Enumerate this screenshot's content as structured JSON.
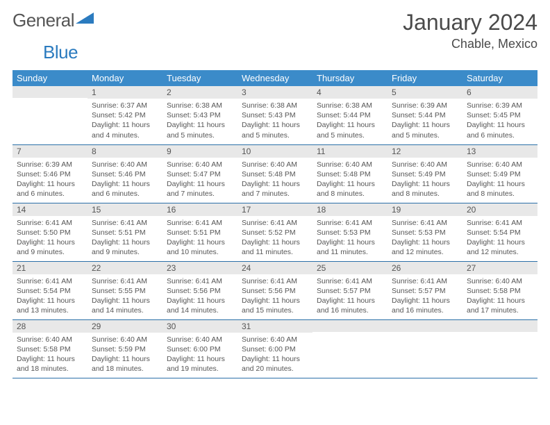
{
  "brand": {
    "name_a": "General",
    "name_b": "Blue"
  },
  "title": "January 2024",
  "location": "Chable, Mexico",
  "colors": {
    "header_bg": "#3b8bc9",
    "header_text": "#ffffff",
    "daynum_bg": "#e8e8e8",
    "text": "#555555",
    "row_border": "#2b6fa8",
    "logo_blue": "#2b7bbf"
  },
  "weekdays": [
    "Sunday",
    "Monday",
    "Tuesday",
    "Wednesday",
    "Thursday",
    "Friday",
    "Saturday"
  ],
  "weeks": [
    [
      {
        "n": "",
        "sr": "",
        "ss": "",
        "dl": ""
      },
      {
        "n": "1",
        "sr": "Sunrise: 6:37 AM",
        "ss": "Sunset: 5:42 PM",
        "dl": "Daylight: 11 hours and 4 minutes."
      },
      {
        "n": "2",
        "sr": "Sunrise: 6:38 AM",
        "ss": "Sunset: 5:43 PM",
        "dl": "Daylight: 11 hours and 5 minutes."
      },
      {
        "n": "3",
        "sr": "Sunrise: 6:38 AM",
        "ss": "Sunset: 5:43 PM",
        "dl": "Daylight: 11 hours and 5 minutes."
      },
      {
        "n": "4",
        "sr": "Sunrise: 6:38 AM",
        "ss": "Sunset: 5:44 PM",
        "dl": "Daylight: 11 hours and 5 minutes."
      },
      {
        "n": "5",
        "sr": "Sunrise: 6:39 AM",
        "ss": "Sunset: 5:44 PM",
        "dl": "Daylight: 11 hours and 5 minutes."
      },
      {
        "n": "6",
        "sr": "Sunrise: 6:39 AM",
        "ss": "Sunset: 5:45 PM",
        "dl": "Daylight: 11 hours and 6 minutes."
      }
    ],
    [
      {
        "n": "7",
        "sr": "Sunrise: 6:39 AM",
        "ss": "Sunset: 5:46 PM",
        "dl": "Daylight: 11 hours and 6 minutes."
      },
      {
        "n": "8",
        "sr": "Sunrise: 6:40 AM",
        "ss": "Sunset: 5:46 PM",
        "dl": "Daylight: 11 hours and 6 minutes."
      },
      {
        "n": "9",
        "sr": "Sunrise: 6:40 AM",
        "ss": "Sunset: 5:47 PM",
        "dl": "Daylight: 11 hours and 7 minutes."
      },
      {
        "n": "10",
        "sr": "Sunrise: 6:40 AM",
        "ss": "Sunset: 5:48 PM",
        "dl": "Daylight: 11 hours and 7 minutes."
      },
      {
        "n": "11",
        "sr": "Sunrise: 6:40 AM",
        "ss": "Sunset: 5:48 PM",
        "dl": "Daylight: 11 hours and 8 minutes."
      },
      {
        "n": "12",
        "sr": "Sunrise: 6:40 AM",
        "ss": "Sunset: 5:49 PM",
        "dl": "Daylight: 11 hours and 8 minutes."
      },
      {
        "n": "13",
        "sr": "Sunrise: 6:40 AM",
        "ss": "Sunset: 5:49 PM",
        "dl": "Daylight: 11 hours and 8 minutes."
      }
    ],
    [
      {
        "n": "14",
        "sr": "Sunrise: 6:41 AM",
        "ss": "Sunset: 5:50 PM",
        "dl": "Daylight: 11 hours and 9 minutes."
      },
      {
        "n": "15",
        "sr": "Sunrise: 6:41 AM",
        "ss": "Sunset: 5:51 PM",
        "dl": "Daylight: 11 hours and 9 minutes."
      },
      {
        "n": "16",
        "sr": "Sunrise: 6:41 AM",
        "ss": "Sunset: 5:51 PM",
        "dl": "Daylight: 11 hours and 10 minutes."
      },
      {
        "n": "17",
        "sr": "Sunrise: 6:41 AM",
        "ss": "Sunset: 5:52 PM",
        "dl": "Daylight: 11 hours and 11 minutes."
      },
      {
        "n": "18",
        "sr": "Sunrise: 6:41 AM",
        "ss": "Sunset: 5:53 PM",
        "dl": "Daylight: 11 hours and 11 minutes."
      },
      {
        "n": "19",
        "sr": "Sunrise: 6:41 AM",
        "ss": "Sunset: 5:53 PM",
        "dl": "Daylight: 11 hours and 12 minutes."
      },
      {
        "n": "20",
        "sr": "Sunrise: 6:41 AM",
        "ss": "Sunset: 5:54 PM",
        "dl": "Daylight: 11 hours and 12 minutes."
      }
    ],
    [
      {
        "n": "21",
        "sr": "Sunrise: 6:41 AM",
        "ss": "Sunset: 5:54 PM",
        "dl": "Daylight: 11 hours and 13 minutes."
      },
      {
        "n": "22",
        "sr": "Sunrise: 6:41 AM",
        "ss": "Sunset: 5:55 PM",
        "dl": "Daylight: 11 hours and 14 minutes."
      },
      {
        "n": "23",
        "sr": "Sunrise: 6:41 AM",
        "ss": "Sunset: 5:56 PM",
        "dl": "Daylight: 11 hours and 14 minutes."
      },
      {
        "n": "24",
        "sr": "Sunrise: 6:41 AM",
        "ss": "Sunset: 5:56 PM",
        "dl": "Daylight: 11 hours and 15 minutes."
      },
      {
        "n": "25",
        "sr": "Sunrise: 6:41 AM",
        "ss": "Sunset: 5:57 PM",
        "dl": "Daylight: 11 hours and 16 minutes."
      },
      {
        "n": "26",
        "sr": "Sunrise: 6:41 AM",
        "ss": "Sunset: 5:57 PM",
        "dl": "Daylight: 11 hours and 16 minutes."
      },
      {
        "n": "27",
        "sr": "Sunrise: 6:40 AM",
        "ss": "Sunset: 5:58 PM",
        "dl": "Daylight: 11 hours and 17 minutes."
      }
    ],
    [
      {
        "n": "28",
        "sr": "Sunrise: 6:40 AM",
        "ss": "Sunset: 5:58 PM",
        "dl": "Daylight: 11 hours and 18 minutes."
      },
      {
        "n": "29",
        "sr": "Sunrise: 6:40 AM",
        "ss": "Sunset: 5:59 PM",
        "dl": "Daylight: 11 hours and 18 minutes."
      },
      {
        "n": "30",
        "sr": "Sunrise: 6:40 AM",
        "ss": "Sunset: 6:00 PM",
        "dl": "Daylight: 11 hours and 19 minutes."
      },
      {
        "n": "31",
        "sr": "Sunrise: 6:40 AM",
        "ss": "Sunset: 6:00 PM",
        "dl": "Daylight: 11 hours and 20 minutes."
      },
      {
        "n": "",
        "sr": "",
        "ss": "",
        "dl": ""
      },
      {
        "n": "",
        "sr": "",
        "ss": "",
        "dl": ""
      },
      {
        "n": "",
        "sr": "",
        "ss": "",
        "dl": ""
      }
    ]
  ]
}
